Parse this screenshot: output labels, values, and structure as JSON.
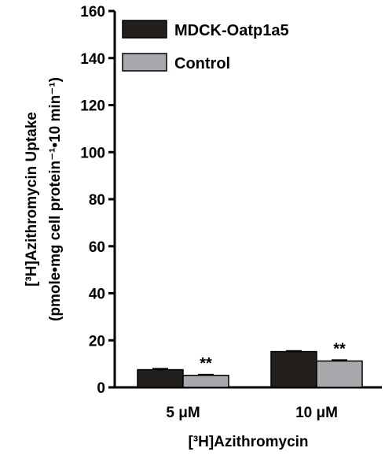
{
  "chart_data": {
    "type": "bar",
    "categories": [
      "5 μM",
      "10 μM"
    ],
    "series": [
      {
        "name": "MDCK-Oatp1a5",
        "values": [
          7.5,
          15.2
        ],
        "errors": [
          0.4,
          0.3
        ],
        "color": "#231f1c"
      },
      {
        "name": "Control",
        "values": [
          5.1,
          11.2
        ],
        "errors": [
          0.3,
          0.4
        ],
        "color": "#a7a9ac"
      }
    ],
    "significance": [
      {
        "category_index": 0,
        "series_index": 1,
        "label": "**"
      },
      {
        "category_index": 1,
        "series_index": 1,
        "label": "**"
      }
    ],
    "xlabel": "[³H]Azithromycin",
    "ylabel": "[³H]Azithromycin Uptake",
    "ylabel_line2": "(pmole•mg cell protein⁻¹•10 min⁻¹)",
    "ylim": [
      0,
      160
    ],
    "yticks": [
      0,
      20,
      40,
      60,
      80,
      100,
      120,
      140,
      160
    ],
    "legend_placement": "top-left",
    "grid": false
  }
}
